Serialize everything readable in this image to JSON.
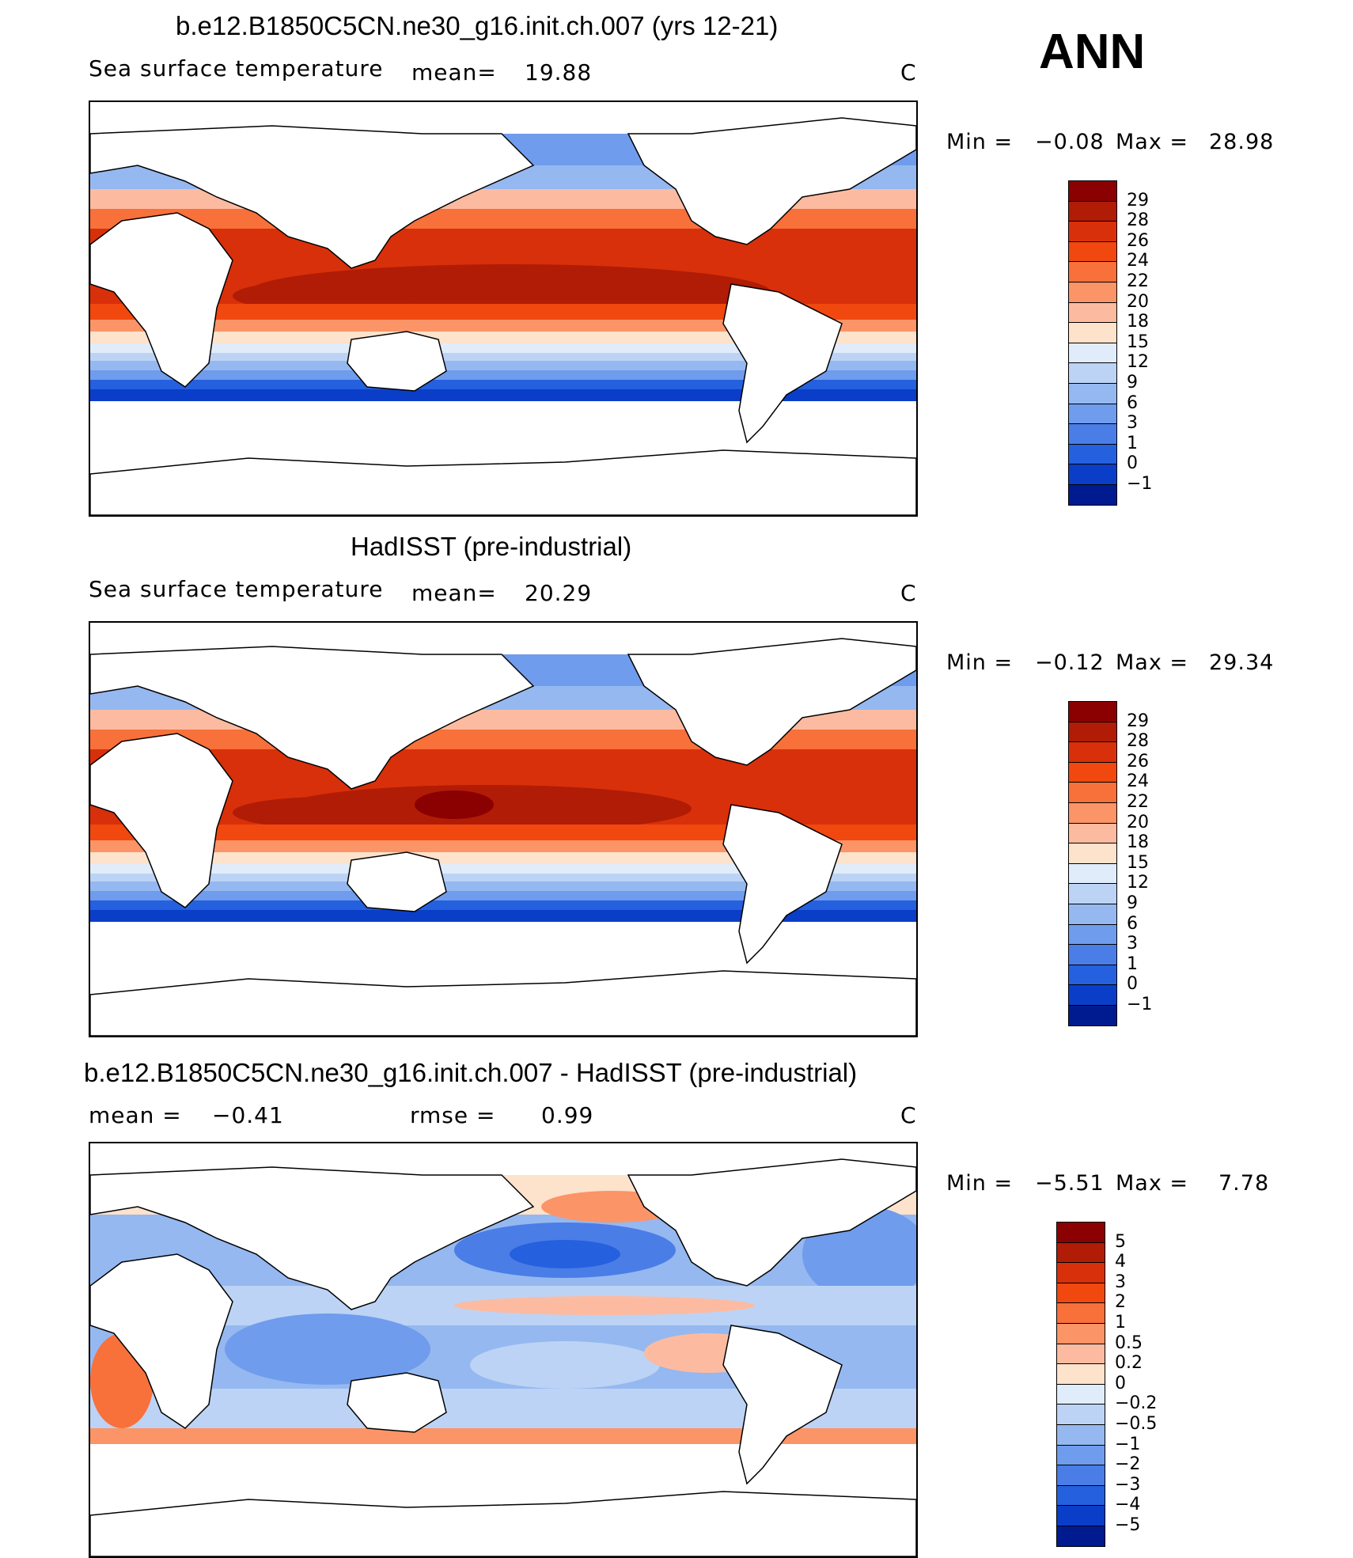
{
  "season": "ANN",
  "panels": [
    {
      "id": "model",
      "title": "b.e12.B1850C5CN.ne30_g16.init.ch.007 (yrs 12-21)",
      "variable": "Sea surface temperature",
      "stat1_label": "mean=",
      "stat1_value": "19.88",
      "stat2_label": "",
      "stat2_value": "",
      "units": "C",
      "min_label": "Min =",
      "min_value": "−0.08",
      "max_label": "Max =",
      "max_value": "28.98",
      "colorbar": {
        "labels": [
          "29",
          "28",
          "26",
          "24",
          "22",
          "20",
          "18",
          "15",
          "12",
          "9",
          "6",
          "3",
          "1",
          "0",
          "−1"
        ],
        "colors": [
          "#8b0000",
          "#b01c06",
          "#d8300a",
          "#f0480f",
          "#f8703a",
          "#fb9467",
          "#fcbba0",
          "#fde2cc",
          "#e0ecfa",
          "#bcd3f5",
          "#95b8f0",
          "#6f9cec",
          "#4a7de6",
          "#2560de",
          "#0a3ec8",
          "#001a8f"
        ]
      }
    },
    {
      "id": "obs",
      "title": "HadISST (pre-industrial)",
      "variable": "Sea surface temperature",
      "stat1_label": "mean=",
      "stat1_value": "20.29",
      "stat2_label": "",
      "stat2_value": "",
      "units": "C",
      "min_label": "Min =",
      "min_value": "−0.12",
      "max_label": "Max =",
      "max_value": "29.34",
      "colorbar": {
        "labels": [
          "29",
          "28",
          "26",
          "24",
          "22",
          "20",
          "18",
          "15",
          "12",
          "9",
          "6",
          "3",
          "1",
          "0",
          "−1"
        ],
        "colors": [
          "#8b0000",
          "#b01c06",
          "#d8300a",
          "#f0480f",
          "#f8703a",
          "#fb9467",
          "#fcbba0",
          "#fde2cc",
          "#e0ecfa",
          "#bcd3f5",
          "#95b8f0",
          "#6f9cec",
          "#4a7de6",
          "#2560de",
          "#0a3ec8",
          "#001a8f"
        ]
      }
    },
    {
      "id": "diff",
      "title": "b.e12.B1850C5CN.ne30_g16.init.ch.007 - HadISST (pre-industrial)",
      "variable": "",
      "stat1_label": "mean =",
      "stat1_value": "−0.41",
      "stat2_label": "rmse =",
      "stat2_value": "0.99",
      "units": "C",
      "min_label": "Min =",
      "min_value": "−5.51",
      "max_label": "Max =",
      "max_value": "7.78",
      "colorbar": {
        "labels": [
          "5",
          "4",
          "3",
          "2",
          "1",
          "0.5",
          "0.2",
          "0",
          "−0.2",
          "−0.5",
          "−1",
          "−2",
          "−3",
          "−4",
          "−5"
        ],
        "colors": [
          "#8b0000",
          "#b01c06",
          "#d8300a",
          "#f0480f",
          "#f8703a",
          "#fb9467",
          "#fcbba0",
          "#fde2cc",
          "#e0ecfa",
          "#bcd3f5",
          "#95b8f0",
          "#6f9cec",
          "#4a7de6",
          "#2560de",
          "#0a3ec8",
          "#001a8f"
        ]
      }
    }
  ]
}
